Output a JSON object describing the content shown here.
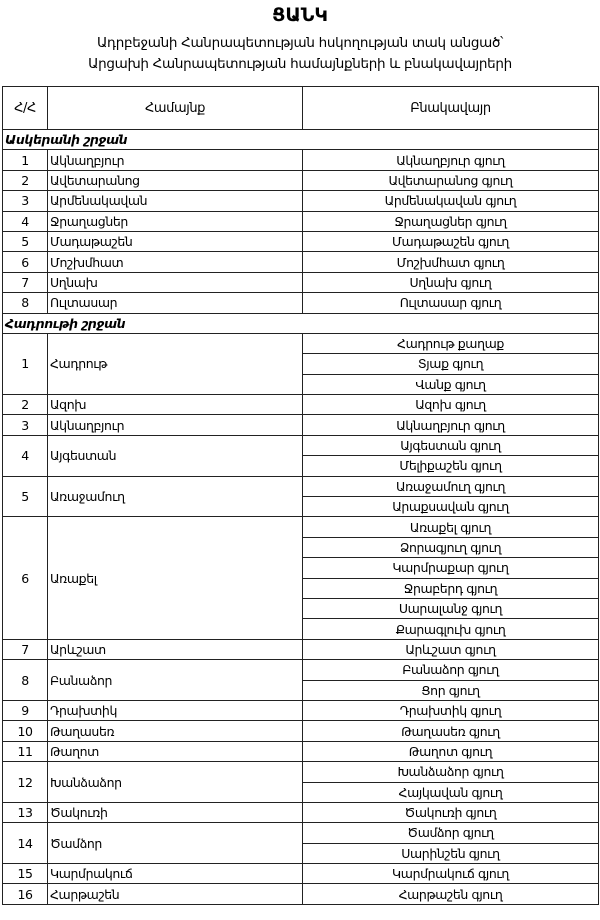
{
  "title": "ՑԱՆԿ",
  "subtitle_line1": "Ադրբեջանի Հանրապետության հսկողության տակ անցած՝",
  "subtitle_line2": "Արցախի Հանրապետության համայնքների և բնակավայրերի",
  "table": {
    "headers": [
      "Հ/Հ",
      "Համայնք",
      "Բնակավայր"
    ],
    "sections": [
      {
        "name": "Ասկերանի շրջան",
        "communities": [
          {
            "no": "1",
            "name": "Ակնաղբյուր",
            "settlements": [
              "Ակնաղբյուր գյուղ"
            ]
          },
          {
            "no": "2",
            "name": "Ավետարանոց",
            "settlements": [
              "Ավետարանոց գյուղ"
            ]
          },
          {
            "no": "3",
            "name": "Արմենակավան",
            "settlements": [
              "Արմենակավան գյուղ"
            ]
          },
          {
            "no": "4",
            "name": "Ջրաղացներ",
            "settlements": [
              "Ջրաղացներ գյուղ"
            ]
          },
          {
            "no": "5",
            "name": "Մադաթաշեն",
            "settlements": [
              "Մադաթաշեն գյուղ"
            ]
          },
          {
            "no": "6",
            "name": "Մոշխմհատ",
            "settlements": [
              "Մոշխմհատ գյուղ"
            ]
          },
          {
            "no": "7",
            "name": "Սղնախ",
            "settlements": [
              "Սղնախ գյուղ"
            ]
          },
          {
            "no": "8",
            "name": "Ուլտասար",
            "settlements": [
              "Ուլտասար գյուղ"
            ]
          }
        ]
      },
      {
        "name": "Հադրութի շրջան",
        "communities": [
          {
            "no": "1",
            "name": "Հադրութ",
            "settlements": [
              "Հադրութ քաղաք",
              "Տյաք գյուղ",
              "Վանք գյուղ"
            ]
          },
          {
            "no": "2",
            "name": "Ազոխ",
            "settlements": [
              "Ազոխ գյուղ"
            ]
          },
          {
            "no": "3",
            "name": "Ակնաղբյուր",
            "settlements": [
              "Ակնաղբյուր գյուղ"
            ]
          },
          {
            "no": "4",
            "name": "Այգեստան",
            "settlements": [
              "Այգեստան գյուղ",
              "Մելիքաշեն գյուղ"
            ]
          },
          {
            "no": "5",
            "name": "Առաջամուղ",
            "settlements": [
              "Առաջամուղ գյուղ",
              "Արաքսավան գյուղ"
            ]
          },
          {
            "no": "6",
            "name": "Առաքել",
            "settlements": [
              "Առաքել գյուղ",
              "Ձորագյուղ գյուղ",
              "Կարմրաքար գյուղ",
              "Ջրաբերդ գյուղ",
              "Սարալանջ գյուղ",
              "Քարագլուխ գյուղ"
            ]
          },
          {
            "no": "7",
            "name": "Արևշատ",
            "settlements": [
              "Արևշատ գյուղ"
            ]
          },
          {
            "no": "8",
            "name": "Բանաձոր",
            "settlements": [
              "Բանաձոր գյուղ",
              "Ցոր գյուղ"
            ]
          },
          {
            "no": "9",
            "name": "Դրախտիկ",
            "settlements": [
              "Դրախտիկ գյուղ"
            ]
          },
          {
            "no": "10",
            "name": "Թաղասեռ",
            "settlements": [
              "Թաղասեռ գյուղ"
            ]
          },
          {
            "no": "11",
            "name": "Թաղոտ",
            "settlements": [
              "Թաղոտ գյուղ"
            ]
          },
          {
            "no": "12",
            "name": "Խանձաձոր",
            "settlements": [
              "Խանձաձոր գյուղ",
              "Հայկավան գյուղ"
            ]
          },
          {
            "no": "13",
            "name": "Ծակուռի",
            "settlements": [
              "Ծակուռի գյուղ"
            ]
          },
          {
            "no": "14",
            "name": "Ծամձոր",
            "settlements": [
              "Ծամձոր գյուղ",
              "Սարինշեն գյուղ"
            ]
          },
          {
            "no": "15",
            "name": "Կարմրակուճ",
            "settlements": [
              "Կարմրակուճ գյուղ"
            ]
          },
          {
            "no": "16",
            "name": "Հարթաշեն",
            "settlements": [
              "Հարթաշեն գյուղ"
            ]
          }
        ]
      }
    ]
  }
}
